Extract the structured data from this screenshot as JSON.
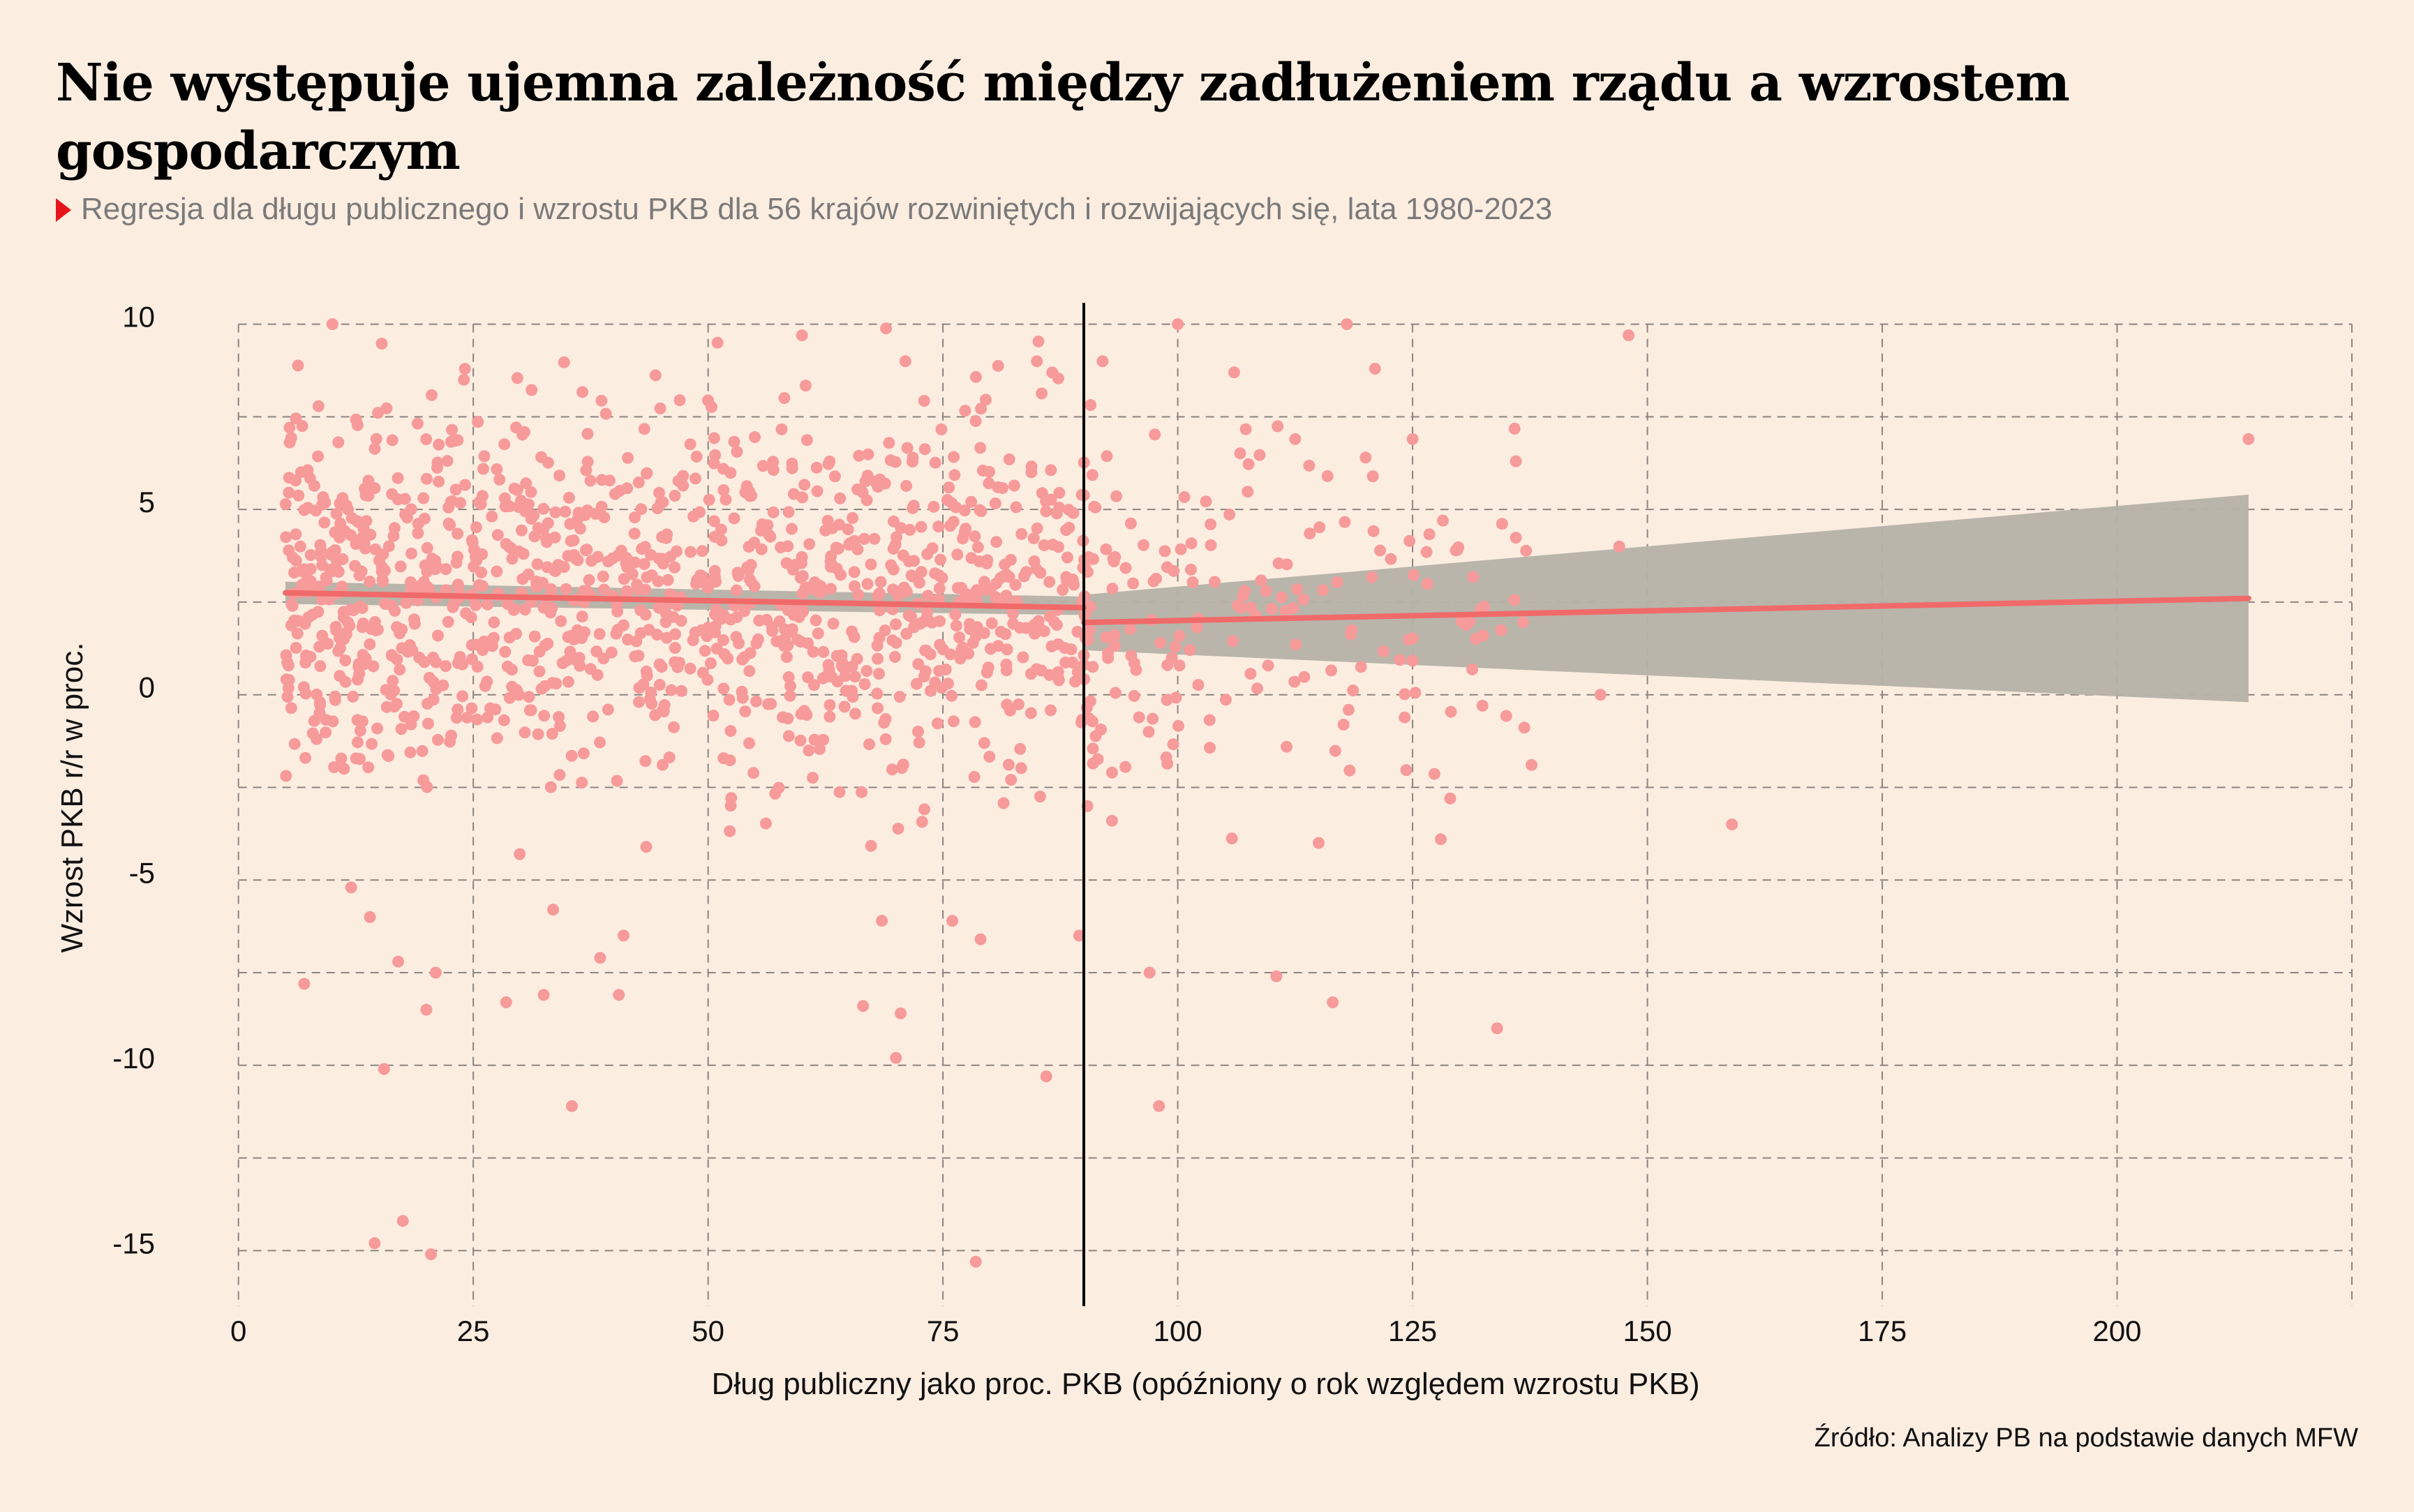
{
  "title": "Nie występuje ujemna zależność między zadłużeniem rządu a wzrostem gospodarczym",
  "subtitle": "Regresja dla długu publicznego i wzrostu PKB dla 56 krajów rozwiniętych i rozwijających się, lata 1980-2023",
  "source": "Źródło: Analizy PB na podstawie danych MFW",
  "chart_data": {
    "type": "scatter",
    "xlabel": "Dług publiczny jako proc. PKB (opóźniony o rok względem wzrostu PKB)",
    "ylabel": "Wzrost PKB r/r w proc.",
    "xlim": [
      -8,
      225
    ],
    "ylim": [
      -16.5,
      10.2
    ],
    "x_ticks": [
      0,
      25,
      50,
      75,
      100,
      125,
      150,
      175,
      200
    ],
    "y_ticks": [
      10,
      5,
      0,
      -5,
      -10,
      -15
    ],
    "x_grid": [
      0,
      25,
      50,
      75,
      100,
      125,
      150,
      175,
      200,
      225
    ],
    "y_grid": [
      10,
      7.5,
      5,
      2.5,
      0,
      -2.5,
      -5,
      -7.5,
      -10,
      -12.5,
      -15
    ],
    "threshold_x": 90,
    "point_color": "#f79a9a",
    "line_color": "#f06a6a",
    "band_color": "#b5b2a8",
    "regression": [
      {
        "segment": "below",
        "x": [
          5,
          90
        ],
        "y": [
          2.75,
          2.35
        ],
        "ci_lower": [
          2.45,
          2.15
        ],
        "ci_upper": [
          3.05,
          2.65
        ]
      },
      {
        "segment": "above",
        "x": [
          90,
          214
        ],
        "y": [
          1.95,
          2.6
        ],
        "ci_lower": [
          1.2,
          -0.2
        ],
        "ci_upper": [
          2.7,
          5.4
        ]
      }
    ],
    "points_shown": [
      [
        7,
        -7.8
      ],
      [
        14.5,
        -14.8
      ],
      [
        17.5,
        -14.2
      ],
      [
        20.5,
        -15.1
      ],
      [
        15.5,
        -10.1
      ],
      [
        35.5,
        -11.1
      ],
      [
        78.5,
        -15.3
      ],
      [
        86,
        -10.3
      ],
      [
        98,
        -11.1
      ],
      [
        17,
        -7.2
      ],
      [
        20,
        -8.5
      ],
      [
        21,
        -7.5
      ],
      [
        28.5,
        -8.3
      ],
      [
        32.5,
        -8.1
      ],
      [
        40.5,
        -8.1
      ],
      [
        38.5,
        -7.1
      ],
      [
        66.5,
        -8.4
      ],
      [
        70.5,
        -8.6
      ],
      [
        70,
        -9.8
      ],
      [
        97,
        -7.5
      ],
      [
        110.5,
        -7.6
      ],
      [
        116.5,
        -8.3
      ],
      [
        134,
        -9
      ],
      [
        159,
        -3.5
      ],
      [
        148,
        9.7
      ],
      [
        214,
        6.9
      ],
      [
        112.5,
        6.9
      ],
      [
        120,
        6.4
      ],
      [
        125,
        6.9
      ],
      [
        136,
        6.3
      ],
      [
        145,
        0
      ],
      [
        147,
        4
      ],
      [
        115,
        -4
      ],
      [
        128,
        -3.9
      ],
      [
        129,
        -2.8
      ],
      [
        93,
        -2.1
      ],
      [
        93,
        -3.4
      ],
      [
        89.5,
        -6.5
      ],
      [
        79,
        -6.6
      ],
      [
        68.5,
        -6.1
      ],
      [
        76,
        -6.1
      ],
      [
        41,
        -6.5
      ],
      [
        33.5,
        -5.8
      ],
      [
        12,
        -5.2
      ],
      [
        14,
        -6
      ],
      [
        10,
        10
      ],
      [
        24,
        8.5
      ],
      [
        51,
        9.5
      ],
      [
        60,
        9.7
      ],
      [
        71,
        9
      ],
      [
        85,
        9
      ],
      [
        100,
        10
      ],
      [
        92,
        9
      ],
      [
        118,
        10
      ],
      [
        106,
        8.7
      ],
      [
        121,
        8.8
      ]
    ],
    "n_points_total": 1500
  }
}
